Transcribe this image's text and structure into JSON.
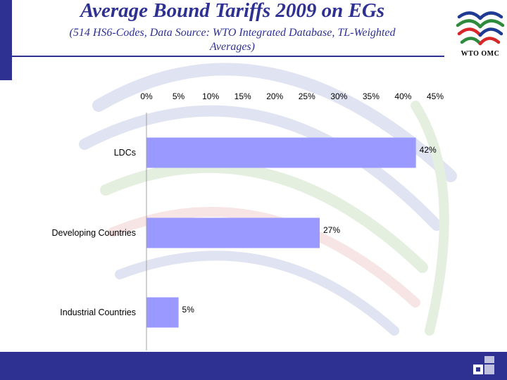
{
  "slide": {
    "title": "Average Bound Tariffs 2009 on EGs",
    "subtitle_line1": "(514 HS6-Codes, Data Source: WTO Integrated Database, TL-Weighted",
    "subtitle_line2": "Averages)",
    "logo_text": "WTO OMC"
  },
  "colors": {
    "brand_blue": "#2e3192",
    "bar_fill": "#9999ff",
    "watermark_blue": "#c8cde6",
    "watermark_green": "#cfe3c8",
    "watermark_red": "#f2cfcf"
  },
  "chart_data": {
    "type": "bar",
    "orientation": "horizontal",
    "x_axis_position": "top",
    "categories": [
      "LDCs",
      "Developing Countries",
      "Industrial Countries"
    ],
    "values": [
      42,
      27,
      5
    ],
    "data_labels": [
      "42%",
      "27%",
      "5%"
    ],
    "xlim": [
      0,
      45
    ],
    "xticks": [
      0,
      5,
      10,
      15,
      20,
      25,
      30,
      35,
      40,
      45
    ],
    "xtick_labels": [
      "0%",
      "5%",
      "10%",
      "15%",
      "20%",
      "25%",
      "30%",
      "35%",
      "40%",
      "45%"
    ],
    "grid": false,
    "legend": "none"
  }
}
